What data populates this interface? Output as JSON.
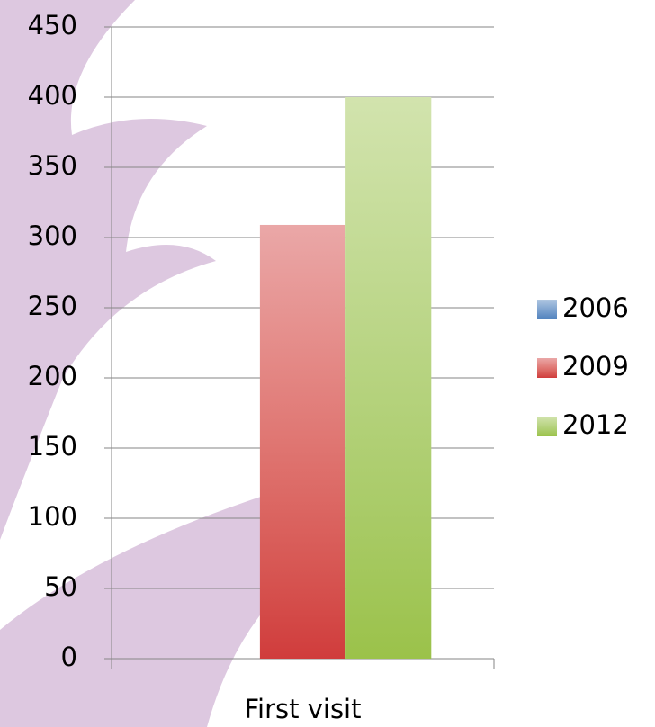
{
  "chart_data": {
    "type": "bar",
    "categories": [
      "First visit"
    ],
    "series": [
      {
        "name": "2006",
        "color": "#4f81bd",
        "values": [
          0
        ]
      },
      {
        "name": "2009",
        "color": "#d03c3c",
        "values": [
          309
        ]
      },
      {
        "name": "2012",
        "color": "#9bc24a",
        "values": [
          400
        ]
      }
    ],
    "ylim": [
      0,
      450
    ],
    "yticks": [
      0,
      50,
      100,
      150,
      200,
      250,
      300,
      350,
      400,
      450
    ],
    "grid": true
  }
}
